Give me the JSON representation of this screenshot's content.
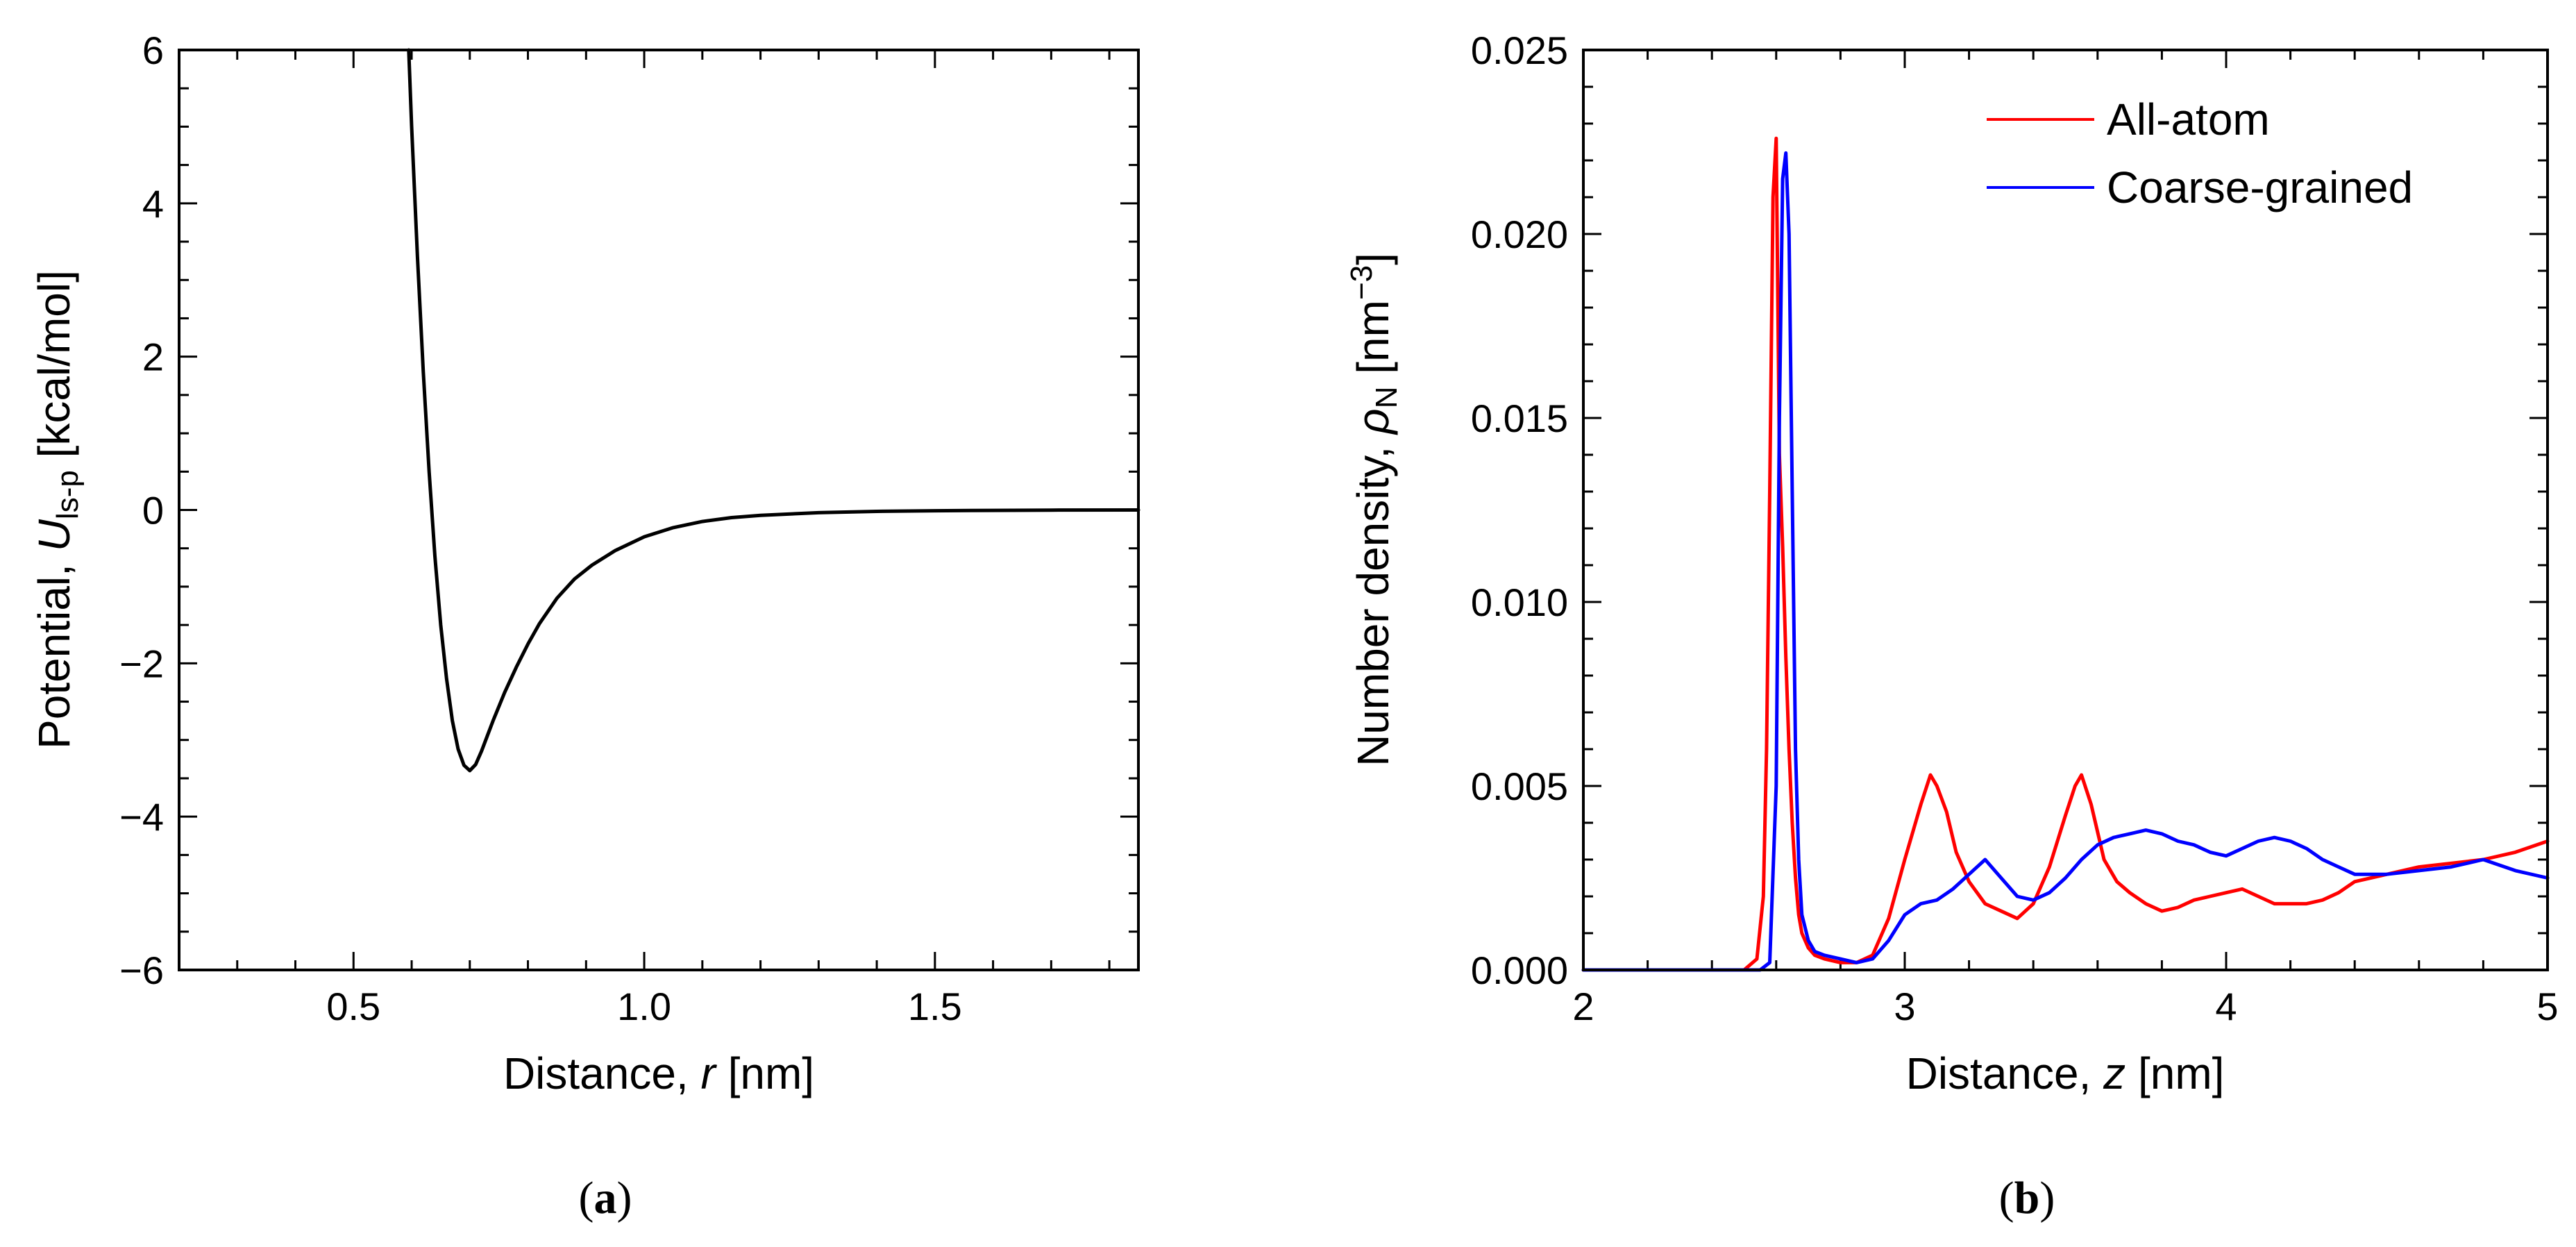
{
  "chart_data": [
    {
      "type": "line",
      "panel": "a",
      "caption_letter": "a",
      "xlabel_prefix": "Distance, ",
      "xlabel_var": "r",
      "xlabel_unit": " [nm]",
      "ylabel_prefix": "Potential, ",
      "ylabel_var": "U",
      "ylabel_sub": "ls-p",
      "ylabel_unit": " [kcal/mol]",
      "xlim": [
        0.2,
        1.85
      ],
      "ylim": [
        -6,
        6
      ],
      "xticks": [
        0.5,
        1.0,
        1.5
      ],
      "xtick_labels": [
        "0.5",
        "1.0",
        "1.5"
      ],
      "yticks": [
        -6,
        -4,
        -2,
        0,
        2,
        4,
        6
      ],
      "ytick_labels": [
        "−6",
        "−4",
        "−2",
        "0",
        "2",
        "4",
        "6"
      ],
      "series": [
        {
          "name": "potential",
          "color": "#000000",
          "x": [
            0.595,
            0.6,
            0.61,
            0.62,
            0.63,
            0.64,
            0.65,
            0.66,
            0.67,
            0.68,
            0.69,
            0.7,
            0.71,
            0.72,
            0.73,
            0.74,
            0.76,
            0.78,
            0.8,
            0.82,
            0.85,
            0.88,
            0.91,
            0.95,
            1.0,
            1.05,
            1.1,
            1.15,
            1.2,
            1.3,
            1.4,
            1.5,
            1.6,
            1.7,
            1.85
          ],
          "y": [
            6.0,
            5.0,
            3.3,
            1.8,
            0.5,
            -0.6,
            -1.5,
            -2.2,
            -2.75,
            -3.12,
            -3.33,
            -3.4,
            -3.32,
            -3.15,
            -2.95,
            -2.75,
            -2.38,
            -2.05,
            -1.75,
            -1.48,
            -1.15,
            -0.9,
            -0.72,
            -0.53,
            -0.35,
            -0.23,
            -0.15,
            -0.1,
            -0.07,
            -0.035,
            -0.018,
            -0.01,
            -0.005,
            -0.002,
            0.0
          ]
        }
      ]
    },
    {
      "type": "line",
      "panel": "b",
      "caption_letter": "b",
      "xlabel_prefix": "Distance, ",
      "xlabel_var": "z",
      "xlabel_unit": " [nm]",
      "ylabel_prefix": "Number density, ",
      "ylabel_var": "ρ",
      "ylabel_sub": "N",
      "ylabel_unit_open": " [nm",
      "ylabel_sup": "−3",
      "ylabel_unit_close": "]",
      "xlim": [
        2,
        5
      ],
      "ylim": [
        0,
        0.025
      ],
      "xticks": [
        2,
        3,
        4,
        5
      ],
      "xtick_labels": [
        "2",
        "3",
        "4",
        "5"
      ],
      "yticks": [
        0,
        0.005,
        0.01,
        0.015,
        0.02,
        0.025
      ],
      "ytick_labels": [
        "0.000",
        "0.005",
        "0.010",
        "0.015",
        "0.020",
        "0.025"
      ],
      "legend_position": "top-right",
      "series": [
        {
          "name": "All-atom",
          "color": "#ff0000",
          "x": [
            2.0,
            2.5,
            2.54,
            2.56,
            2.57,
            2.58,
            2.59,
            2.6,
            2.61,
            2.62,
            2.63,
            2.64,
            2.65,
            2.66,
            2.67,
            2.68,
            2.7,
            2.72,
            2.75,
            2.8,
            2.85,
            2.9,
            2.95,
            3.0,
            3.05,
            3.08,
            3.1,
            3.13,
            3.16,
            3.2,
            3.25,
            3.3,
            3.35,
            3.4,
            3.45,
            3.5,
            3.53,
            3.55,
            3.58,
            3.62,
            3.66,
            3.7,
            3.75,
            3.8,
            3.85,
            3.9,
            3.95,
            4.0,
            4.05,
            4.1,
            4.15,
            4.2,
            4.25,
            4.3,
            4.35,
            4.4,
            4.5,
            4.6,
            4.7,
            4.8,
            4.9,
            5.0
          ],
          "y": [
            0,
            0,
            0.0003,
            0.002,
            0.006,
            0.013,
            0.021,
            0.0226,
            0.014,
            0.0115,
            0.0085,
            0.006,
            0.004,
            0.0025,
            0.0015,
            0.001,
            0.0006,
            0.0004,
            0.0003,
            0.0002,
            0.0002,
            0.0004,
            0.0014,
            0.003,
            0.0045,
            0.0053,
            0.005,
            0.0043,
            0.0032,
            0.0024,
            0.0018,
            0.0016,
            0.0014,
            0.0018,
            0.0028,
            0.0042,
            0.005,
            0.0053,
            0.0045,
            0.003,
            0.0024,
            0.0021,
            0.0018,
            0.0016,
            0.0017,
            0.0019,
            0.002,
            0.0021,
            0.0022,
            0.002,
            0.0018,
            0.0018,
            0.0018,
            0.0019,
            0.0021,
            0.0024,
            0.0026,
            0.0028,
            0.0029,
            0.003,
            0.0032,
            0.0035
          ]
        },
        {
          "name": "Coarse-grained",
          "color": "#0000ff",
          "x": [
            2.0,
            2.55,
            2.58,
            2.6,
            2.61,
            2.62,
            2.63,
            2.64,
            2.65,
            2.66,
            2.67,
            2.68,
            2.7,
            2.72,
            2.75,
            2.8,
            2.85,
            2.9,
            2.95,
            3.0,
            3.05,
            3.1,
            3.15,
            3.2,
            3.25,
            3.3,
            3.35,
            3.4,
            3.45,
            3.5,
            3.55,
            3.6,
            3.65,
            3.7,
            3.75,
            3.8,
            3.85,
            3.9,
            3.95,
            4.0,
            4.05,
            4.1,
            4.15,
            4.2,
            4.25,
            4.3,
            4.35,
            4.4,
            4.5,
            4.6,
            4.7,
            4.8,
            4.9,
            5.0
          ],
          "y": [
            0,
            0,
            0.0002,
            0.005,
            0.015,
            0.0215,
            0.0222,
            0.02,
            0.013,
            0.006,
            0.003,
            0.0015,
            0.0008,
            0.0005,
            0.0004,
            0.0003,
            0.0002,
            0.0003,
            0.0008,
            0.0015,
            0.0018,
            0.0019,
            0.0022,
            0.0026,
            0.003,
            0.0025,
            0.002,
            0.0019,
            0.0021,
            0.0025,
            0.003,
            0.0034,
            0.0036,
            0.0037,
            0.0038,
            0.0037,
            0.0035,
            0.0034,
            0.0032,
            0.0031,
            0.0033,
            0.0035,
            0.0036,
            0.0035,
            0.0033,
            0.003,
            0.0028,
            0.0026,
            0.0026,
            0.0027,
            0.0028,
            0.003,
            0.0027,
            0.0025
          ]
        }
      ]
    }
  ]
}
